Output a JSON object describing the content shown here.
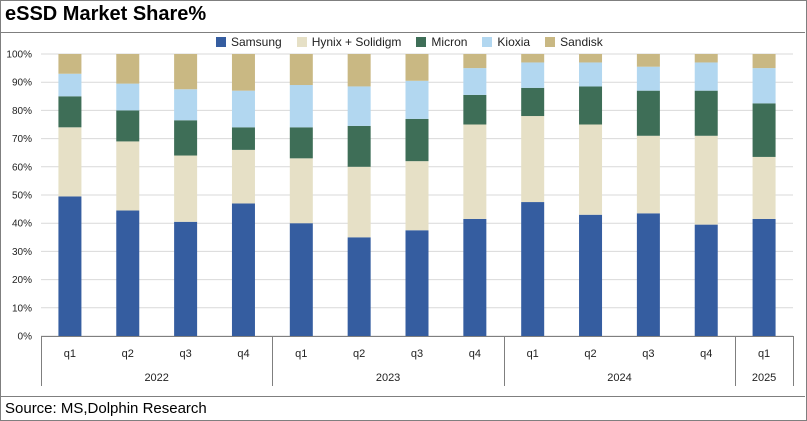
{
  "title": "eSSD Market Share%",
  "source": "Source: MS,Dolphin Research",
  "colors": {
    "Samsung": "#355da0",
    "Hynix + Solidigm": "#e6e0c6",
    "Micron": "#3e6e57",
    "Kioxia": "#b2d7f0",
    "Sandisk": "#c9b883"
  },
  "chart_data": {
    "type": "bar",
    "stacked": true,
    "title": "eSSD Market Share%",
    "ylim": [
      0,
      100
    ],
    "y_ticks": [
      "0%",
      "10%",
      "20%",
      "30%",
      "40%",
      "50%",
      "60%",
      "70%",
      "80%",
      "90%",
      "100%"
    ],
    "grid": true,
    "legend_position": "top",
    "categories": [
      "q1",
      "q2",
      "q3",
      "q4",
      "q1",
      "q2",
      "q3",
      "q4",
      "q1",
      "q2",
      "q3",
      "q4",
      "q1"
    ],
    "groups": [
      {
        "label": "2022",
        "count": 4
      },
      {
        "label": "2023",
        "count": 4
      },
      {
        "label": "2024",
        "count": 4
      },
      {
        "label": "2025",
        "count": 1
      }
    ],
    "series": [
      {
        "name": "Samsung",
        "values": [
          49.5,
          44.5,
          40.5,
          47,
          40,
          35,
          37.5,
          41.5,
          47.5,
          43,
          43.5,
          39.5,
          41.5
        ]
      },
      {
        "name": "Hynix + Solidigm",
        "values": [
          24.5,
          24.5,
          23.5,
          19,
          23,
          25,
          24.5,
          33.5,
          30.5,
          32,
          27.5,
          31.5,
          22
        ]
      },
      {
        "name": "Micron",
        "values": [
          11,
          11,
          12.5,
          8,
          11,
          14.5,
          15,
          10.5,
          10,
          13.5,
          16,
          16,
          19
        ]
      },
      {
        "name": "Kioxia",
        "values": [
          8,
          9.5,
          11,
          13,
          15,
          14,
          13.5,
          9.5,
          9,
          8.5,
          8.5,
          10,
          12.5
        ]
      },
      {
        "name": "Sandisk",
        "values": [
          7,
          10.5,
          12.5,
          13,
          11,
          11.5,
          9.5,
          5,
          3,
          3,
          4.5,
          3,
          5
        ]
      }
    ]
  }
}
